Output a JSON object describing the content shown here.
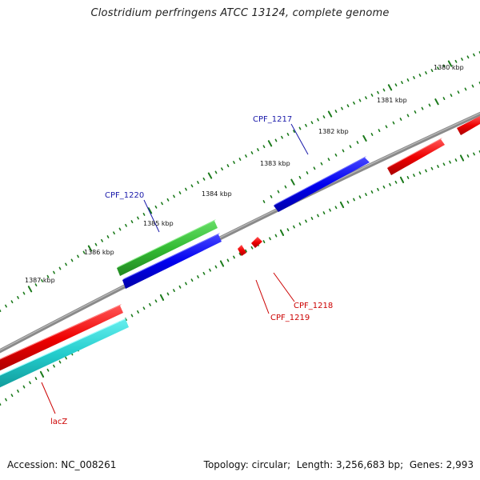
{
  "title": "Clostridium perfringens ATCC 13124, complete genome",
  "footer": {
    "accession_label": "Accession:",
    "accession": "NC_008261",
    "topology_label": "Topology:",
    "topology": "circular",
    "length_label": "Length:",
    "length": "3,256,683 bp",
    "genes_label": "Genes:",
    "genes": "2,993"
  },
  "scale": {
    "tick_labels": [
      "1380 kbp",
      "1381 kbp",
      "1382 kbp",
      "1383 kbp",
      "1384 kbp",
      "1385 kbp",
      "1386 kbp",
      "1387 kbp"
    ]
  },
  "genes": [
    {
      "name": "CPF_1217",
      "color": "#1a1aaa"
    },
    {
      "name": "CPF_1220",
      "color": "#1a1aaa"
    },
    {
      "name": "CPF_1218",
      "color": "#cc0000"
    },
    {
      "name": "CPF_1219",
      "color": "#cc0000"
    },
    {
      "name": "lacZ",
      "color": "#cc0000"
    }
  ],
  "colors": {
    "backbone": "#808080",
    "tick": "#1b7a1b",
    "gene_red": "#ee0000",
    "gene_blue": "#0000ee",
    "gene_green": "#33bb33",
    "gene_cyan": "#22cccc"
  }
}
